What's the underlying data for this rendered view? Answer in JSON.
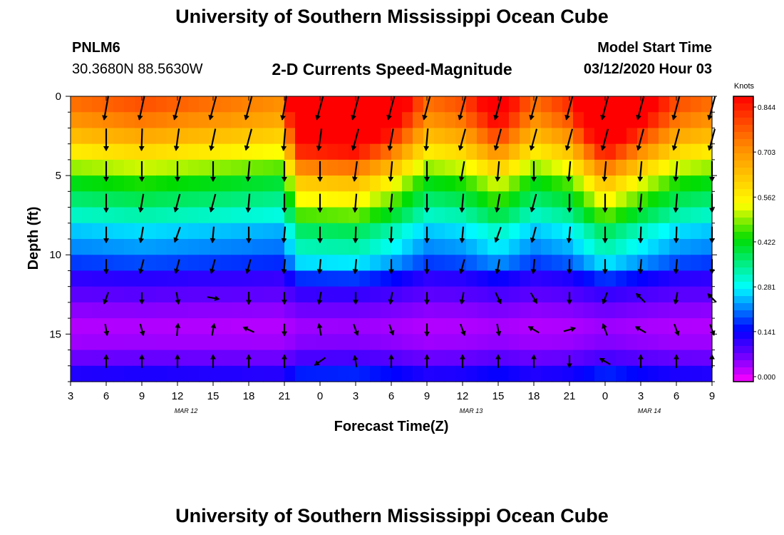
{
  "header": {
    "title": "University of Southern Mississippi Ocean Cube",
    "station_id": "PNLM6",
    "coordinates": "30.3680N 88.5630W",
    "model_start_label": "Model Start Time",
    "model_start_value": "03/12/2020 Hour 03"
  },
  "footer": {
    "title": "University of Southern Mississippi Ocean Cube"
  },
  "colorbar": {
    "unit": "Knots",
    "ticks": [
      "0.844",
      "0.703",
      "0.562",
      "0.422",
      "0.281",
      "0.141",
      "0.000"
    ]
  },
  "chart_data": {
    "type": "heatmap",
    "title": "2-D Currents Speed-Magnitude",
    "xlabel": "Forecast Time(Z)",
    "ylabel": "Depth (ft)",
    "x_tick_labels": [
      "3",
      "6",
      "9",
      "12",
      "15",
      "18",
      "21",
      "0",
      "3",
      "6",
      "9",
      "12",
      "15",
      "18",
      "21",
      "0",
      "3",
      "6",
      "9"
    ],
    "x_hours": [
      3,
      6,
      9,
      12,
      15,
      18,
      21,
      24,
      27,
      30,
      33,
      36,
      39,
      42,
      45,
      48,
      51,
      54,
      57
    ],
    "date_labels": [
      {
        "label": "MAR 12",
        "hour": 12
      },
      {
        "label": "MAR 13",
        "hour": 36
      },
      {
        "label": "MAR 14",
        "hour": 51
      }
    ],
    "x_range_hours": [
      3,
      57
    ],
    "y_ticks": [
      0,
      5,
      10,
      15
    ],
    "y_range": [
      0,
      18
    ],
    "y_inverted": true,
    "value_range": [
      0.0,
      0.844
    ],
    "value_unit": "Knots",
    "depth_profile": [
      {
        "depth": 0.5,
        "speed": 0.72
      },
      {
        "depth": 1.5,
        "speed": 0.68
      },
      {
        "depth": 2.5,
        "speed": 0.62
      },
      {
        "depth": 3.5,
        "speed": 0.55
      },
      {
        "depth": 4.5,
        "speed": 0.48
      },
      {
        "depth": 5.5,
        "speed": 0.41
      },
      {
        "depth": 6.5,
        "speed": 0.36
      },
      {
        "depth": 7.5,
        "speed": 0.31
      },
      {
        "depth": 8.5,
        "speed": 0.25
      },
      {
        "depth": 9.5,
        "speed": 0.22
      },
      {
        "depth": 10.5,
        "speed": 0.18
      },
      {
        "depth": 11.5,
        "speed": 0.12
      },
      {
        "depth": 12.5,
        "speed": 0.09
      },
      {
        "depth": 13.5,
        "speed": 0.06
      },
      {
        "depth": 14.5,
        "speed": 0.04
      },
      {
        "depth": 15.5,
        "speed": 0.05
      },
      {
        "depth": 16.5,
        "speed": 0.08
      },
      {
        "depth": 17.5,
        "speed": 0.13
      }
    ],
    "time_factor": [
      {
        "hour": 3,
        "factor": 1.0
      },
      {
        "hour": 9,
        "factor": 1.05
      },
      {
        "hour": 15,
        "factor": 1.0
      },
      {
        "hour": 21,
        "factor": 0.95
      },
      {
        "hour": 22,
        "factor": 1.45
      },
      {
        "hour": 27,
        "factor": 1.5
      },
      {
        "hour": 30,
        "factor": 1.3
      },
      {
        "hour": 33,
        "factor": 1.0
      },
      {
        "hour": 36,
        "factor": 1.05
      },
      {
        "hour": 39,
        "factor": 1.25
      },
      {
        "hour": 42,
        "factor": 1.0
      },
      {
        "hour": 45,
        "factor": 1.1
      },
      {
        "hour": 48,
        "factor": 1.5
      },
      {
        "hour": 51,
        "factor": 1.25
      },
      {
        "hour": 54,
        "factor": 1.05
      },
      {
        "hour": 57,
        "factor": 1.0
      }
    ],
    "vector_depths": [
      0.5,
      2.5,
      4.5,
      6.5,
      8.5,
      10.5,
      12.5,
      14.5,
      16.5
    ],
    "vector_hours": [
      6,
      9,
      12,
      15,
      18,
      21,
      24,
      27,
      30,
      33,
      36,
      39,
      42,
      45,
      48,
      51,
      54,
      57
    ],
    "vector_directions_deg": [
      [
        190,
        192,
        195,
        195,
        195,
        190,
        195,
        195,
        195,
        195,
        195,
        195,
        195,
        195,
        195,
        195,
        195,
        195
      ],
      [
        180,
        182,
        188,
        192,
        195,
        185,
        188,
        195,
        190,
        185,
        195,
        195,
        195,
        195,
        195,
        195,
        195,
        195
      ],
      [
        180,
        180,
        180,
        180,
        185,
        180,
        180,
        188,
        185,
        180,
        190,
        185,
        180,
        185,
        185,
        185,
        185,
        180
      ],
      [
        180,
        190,
        195,
        195,
        185,
        180,
        180,
        185,
        185,
        180,
        185,
        190,
        195,
        180,
        180,
        185,
        185,
        180
      ],
      [
        180,
        190,
        200,
        185,
        180,
        185,
        180,
        182,
        182,
        180,
        185,
        200,
        195,
        185,
        180,
        182,
        182,
        180
      ],
      [
        180,
        195,
        195,
        195,
        195,
        185,
        185,
        185,
        180,
        180,
        195,
        190,
        185,
        180,
        180,
        185,
        185,
        180
      ],
      [
        200,
        180,
        170,
        100,
        180,
        180,
        190,
        180,
        190,
        180,
        190,
        155,
        150,
        180,
        200,
        315,
        190,
        315
      ],
      [
        170,
        165,
        5,
        10,
        295,
        180,
        350,
        160,
        160,
        180,
        160,
        170,
        300,
        75,
        340,
        300,
        160,
        160
      ],
      [
        0,
        0,
        0,
        0,
        0,
        0,
        235,
        350,
        0,
        0,
        0,
        0,
        0,
        180,
        300,
        0,
        0,
        0
      ]
    ],
    "vector_magnitudes": [
      [
        0.72,
        0.72,
        0.72,
        0.72,
        0.72,
        0.72,
        0.72,
        0.72,
        0.72,
        0.72,
        0.72,
        0.72,
        0.72,
        0.72,
        0.72,
        0.72,
        0.72,
        0.72
      ],
      [
        0.6,
        0.6,
        0.6,
        0.6,
        0.6,
        0.6,
        0.6,
        0.6,
        0.6,
        0.6,
        0.6,
        0.6,
        0.6,
        0.6,
        0.6,
        0.6,
        0.6,
        0.6
      ],
      [
        0.5,
        0.5,
        0.5,
        0.5,
        0.5,
        0.5,
        0.5,
        0.5,
        0.5,
        0.5,
        0.5,
        0.5,
        0.5,
        0.5,
        0.5,
        0.5,
        0.5,
        0.5
      ],
      [
        0.42,
        0.42,
        0.42,
        0.42,
        0.42,
        0.42,
        0.42,
        0.42,
        0.42,
        0.42,
        0.42,
        0.42,
        0.42,
        0.42,
        0.42,
        0.42,
        0.42,
        0.42
      ],
      [
        0.3,
        0.3,
        0.3,
        0.3,
        0.3,
        0.3,
        0.3,
        0.3,
        0.3,
        0.3,
        0.3,
        0.3,
        0.3,
        0.3,
        0.3,
        0.3,
        0.3,
        0.3
      ],
      [
        0.22,
        0.22,
        0.22,
        0.22,
        0.22,
        0.22,
        0.22,
        0.22,
        0.22,
        0.22,
        0.22,
        0.22,
        0.22,
        0.22,
        0.22,
        0.22,
        0.22,
        0.22
      ],
      [
        0.12,
        0.08,
        0.1,
        0.1,
        0.12,
        0.1,
        0.12,
        0.1,
        0.1,
        0.1,
        0.1,
        0.12,
        0.1,
        0.1,
        0.1,
        0.12,
        0.1,
        0.1
      ],
      [
        0.08,
        0.1,
        0.12,
        0.1,
        0.1,
        0.1,
        0.1,
        0.1,
        0.06,
        0.12,
        0.1,
        0.1,
        0.1,
        0.1,
        0.12,
        0.1,
        0.1,
        0.08
      ],
      [
        0.15,
        0.15,
        0.15,
        0.15,
        0.15,
        0.15,
        0.15,
        0.08,
        0.15,
        0.15,
        0.15,
        0.15,
        0.15,
        0.12,
        0.1,
        0.15,
        0.15,
        0.15
      ]
    ]
  }
}
